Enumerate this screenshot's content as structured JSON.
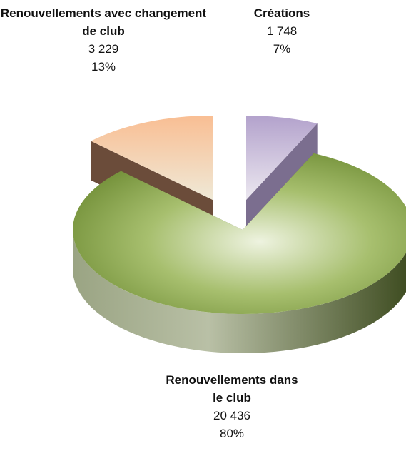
{
  "chart_data": {
    "type": "pie",
    "categories": [
      "Créations",
      "Renouvellements dans le club",
      "Renouvellements avec changement de club"
    ],
    "values": [
      1748,
      20436,
      3229
    ],
    "value_labels": [
      "1 748",
      "20 436",
      "3 229"
    ],
    "percentages": [
      7,
      80,
      13
    ],
    "percentage_labels": [
      "7%",
      "80%",
      "13%"
    ],
    "colors": [
      "#b7a6cf",
      "#76933c",
      "#f9be93"
    ],
    "side_colors": [
      "#7b6e8f",
      "#4f6128",
      "#6b4c3a"
    ]
  }
}
